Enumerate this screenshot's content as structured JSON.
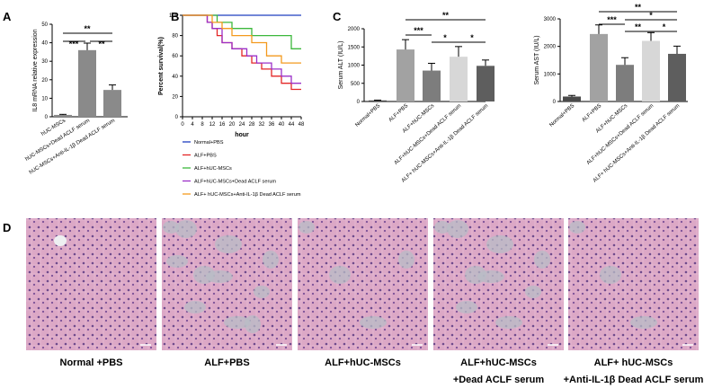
{
  "panels": {
    "A": "A",
    "B": "B",
    "C": "C",
    "D": "D"
  },
  "colors": {
    "il8_bar": "#8a8a8a",
    "surv": [
      "#1f3fbf",
      "#e32626",
      "#3cb83c",
      "#9b30c8",
      "#f39a1e"
    ],
    "bars": [
      "#4a4a4a",
      "#a2a2a2",
      "#7d7d7d",
      "#d7d7d7",
      "#5e5e5e"
    ],
    "tissue_bg": "#dba5c6",
    "tissue_stain": "#b8bcc6"
  },
  "chart_data": [
    {
      "type": "bar",
      "panel": "A",
      "ylabel": "IL8 mRNA relative expression",
      "ylim": [
        0,
        50
      ],
      "yticks": [
        "0",
        "10",
        "20",
        "30",
        "40",
        "50"
      ],
      "categories": [
        "hUC-MSCs",
        "hUC-MSCs+Dead ACLF serum",
        "hUC-MSCs+Anti-IL-1β Dead ACLF serum"
      ],
      "values": [
        1,
        36,
        14.5
      ],
      "errors": [
        0.3,
        3.8,
        2.7
      ],
      "significance": [
        "***",
        "**",
        "**"
      ]
    },
    {
      "type": "line",
      "panel": "B",
      "ylabel": "Percent survival(%)",
      "xlabel": "hour",
      "xlim": [
        0,
        48
      ],
      "ylim": [
        0,
        100
      ],
      "xticks": [
        "0",
        "4",
        "8",
        "12",
        "16",
        "20",
        "24",
        "28",
        "32",
        "36",
        "40",
        "44",
        "48"
      ],
      "yticks": [
        "0",
        "20",
        "40",
        "60",
        "80",
        "100"
      ],
      "series": [
        {
          "name": "Normal+PBS",
          "x": [
            0,
            48
          ],
          "y": [
            100,
            100
          ]
        },
        {
          "name": "ALF+PBS",
          "x": [
            0,
            10,
            10,
            12,
            12,
            14,
            14,
            16,
            16,
            20,
            20,
            24,
            24,
            28,
            28,
            32,
            32,
            36,
            36,
            40,
            40,
            44,
            44,
            48
          ],
          "y": [
            100,
            100,
            93,
            93,
            87,
            87,
            80,
            80,
            73,
            73,
            67,
            67,
            60,
            60,
            53,
            53,
            47,
            47,
            40,
            40,
            33,
            33,
            27,
            27
          ]
        },
        {
          "name": "ALF+hUC-MSCs",
          "x": [
            0,
            14,
            14,
            20,
            20,
            28,
            28,
            44,
            44,
            48
          ],
          "y": [
            100,
            100,
            93,
            93,
            87,
            87,
            80,
            80,
            67,
            67
          ]
        },
        {
          "name": "ALF+hUC-MSCs+Dead ACLF serum",
          "x": [
            0,
            10,
            10,
            12,
            12,
            16,
            16,
            20,
            20,
            26,
            26,
            30,
            30,
            36,
            36,
            40,
            40,
            44,
            44,
            48
          ],
          "y": [
            100,
            100,
            93,
            93,
            87,
            87,
            73,
            73,
            67,
            67,
            60,
            60,
            53,
            53,
            47,
            47,
            40,
            40,
            33,
            33
          ],
          "legend_label": "ALF+hUC-MSCs+Dead ACLF serum"
        },
        {
          "name": "ALF+ hUC-MSCs+Anti-IL-1β Dead ACLF serum",
          "x": [
            0,
            12,
            12,
            16,
            16,
            20,
            20,
            28,
            28,
            34,
            34,
            40,
            40,
            48
          ],
          "y": [
            100,
            100,
            93,
            93,
            87,
            87,
            80,
            80,
            73,
            73,
            60,
            60,
            53,
            53
          ]
        }
      ]
    },
    {
      "type": "bar",
      "panel": "C-ALT",
      "ylabel": "Serum ALT (IU/L)",
      "ylim": [
        0,
        2000
      ],
      "yticks": [
        "0",
        "500",
        "1000",
        "1500",
        "2000"
      ],
      "categories": [
        "Normal+PBS",
        "ALF+PBS",
        "ALF+hUC-MSCs",
        "ALF+hUC-MSCs+Dead ACLF serum",
        "ALF+ hUC-MSCs+Anti-IL-1β Dead ACLF serum"
      ],
      "values": [
        30,
        1430,
        850,
        1230,
        980
      ],
      "errors": [
        8,
        270,
        200,
        280,
        160
      ],
      "significance": [
        "**",
        "***",
        "*",
        "*"
      ]
    },
    {
      "type": "bar",
      "panel": "C-AST",
      "ylabel": "Serum AST (IU/L)",
      "ylim": [
        0,
        3000
      ],
      "yticks": [
        "0",
        "1000",
        "2000",
        "3000"
      ],
      "categories": [
        "Normal+PBS",
        "ALF+PBS",
        "ALF+hUC-MSCs",
        "ALF+hUC-MSCs+Dead ACLF serum",
        "ALF+ hUC-MSCs+Anti-IL-1β Dead ACLF serum"
      ],
      "values": [
        180,
        2450,
        1330,
        2200,
        1730
      ],
      "errors": [
        40,
        330,
        260,
        300,
        280
      ],
      "significance": [
        "**",
        "***",
        "*",
        "**",
        "*"
      ]
    }
  ],
  "histology": {
    "captions": [
      "Normal +PBS",
      "ALF+PBS",
      "ALF+hUC-MSCs",
      "ALF+hUC-MSCs",
      "ALF+ hUC-MSCs"
    ],
    "captions_line2": [
      "",
      "",
      "",
      "+Dead ACLF serum",
      "+Anti-IL-1β Dead ACLF serum"
    ],
    "stain_density": [
      0.0,
      0.8,
      0.3,
      0.65,
      0.2
    ]
  }
}
